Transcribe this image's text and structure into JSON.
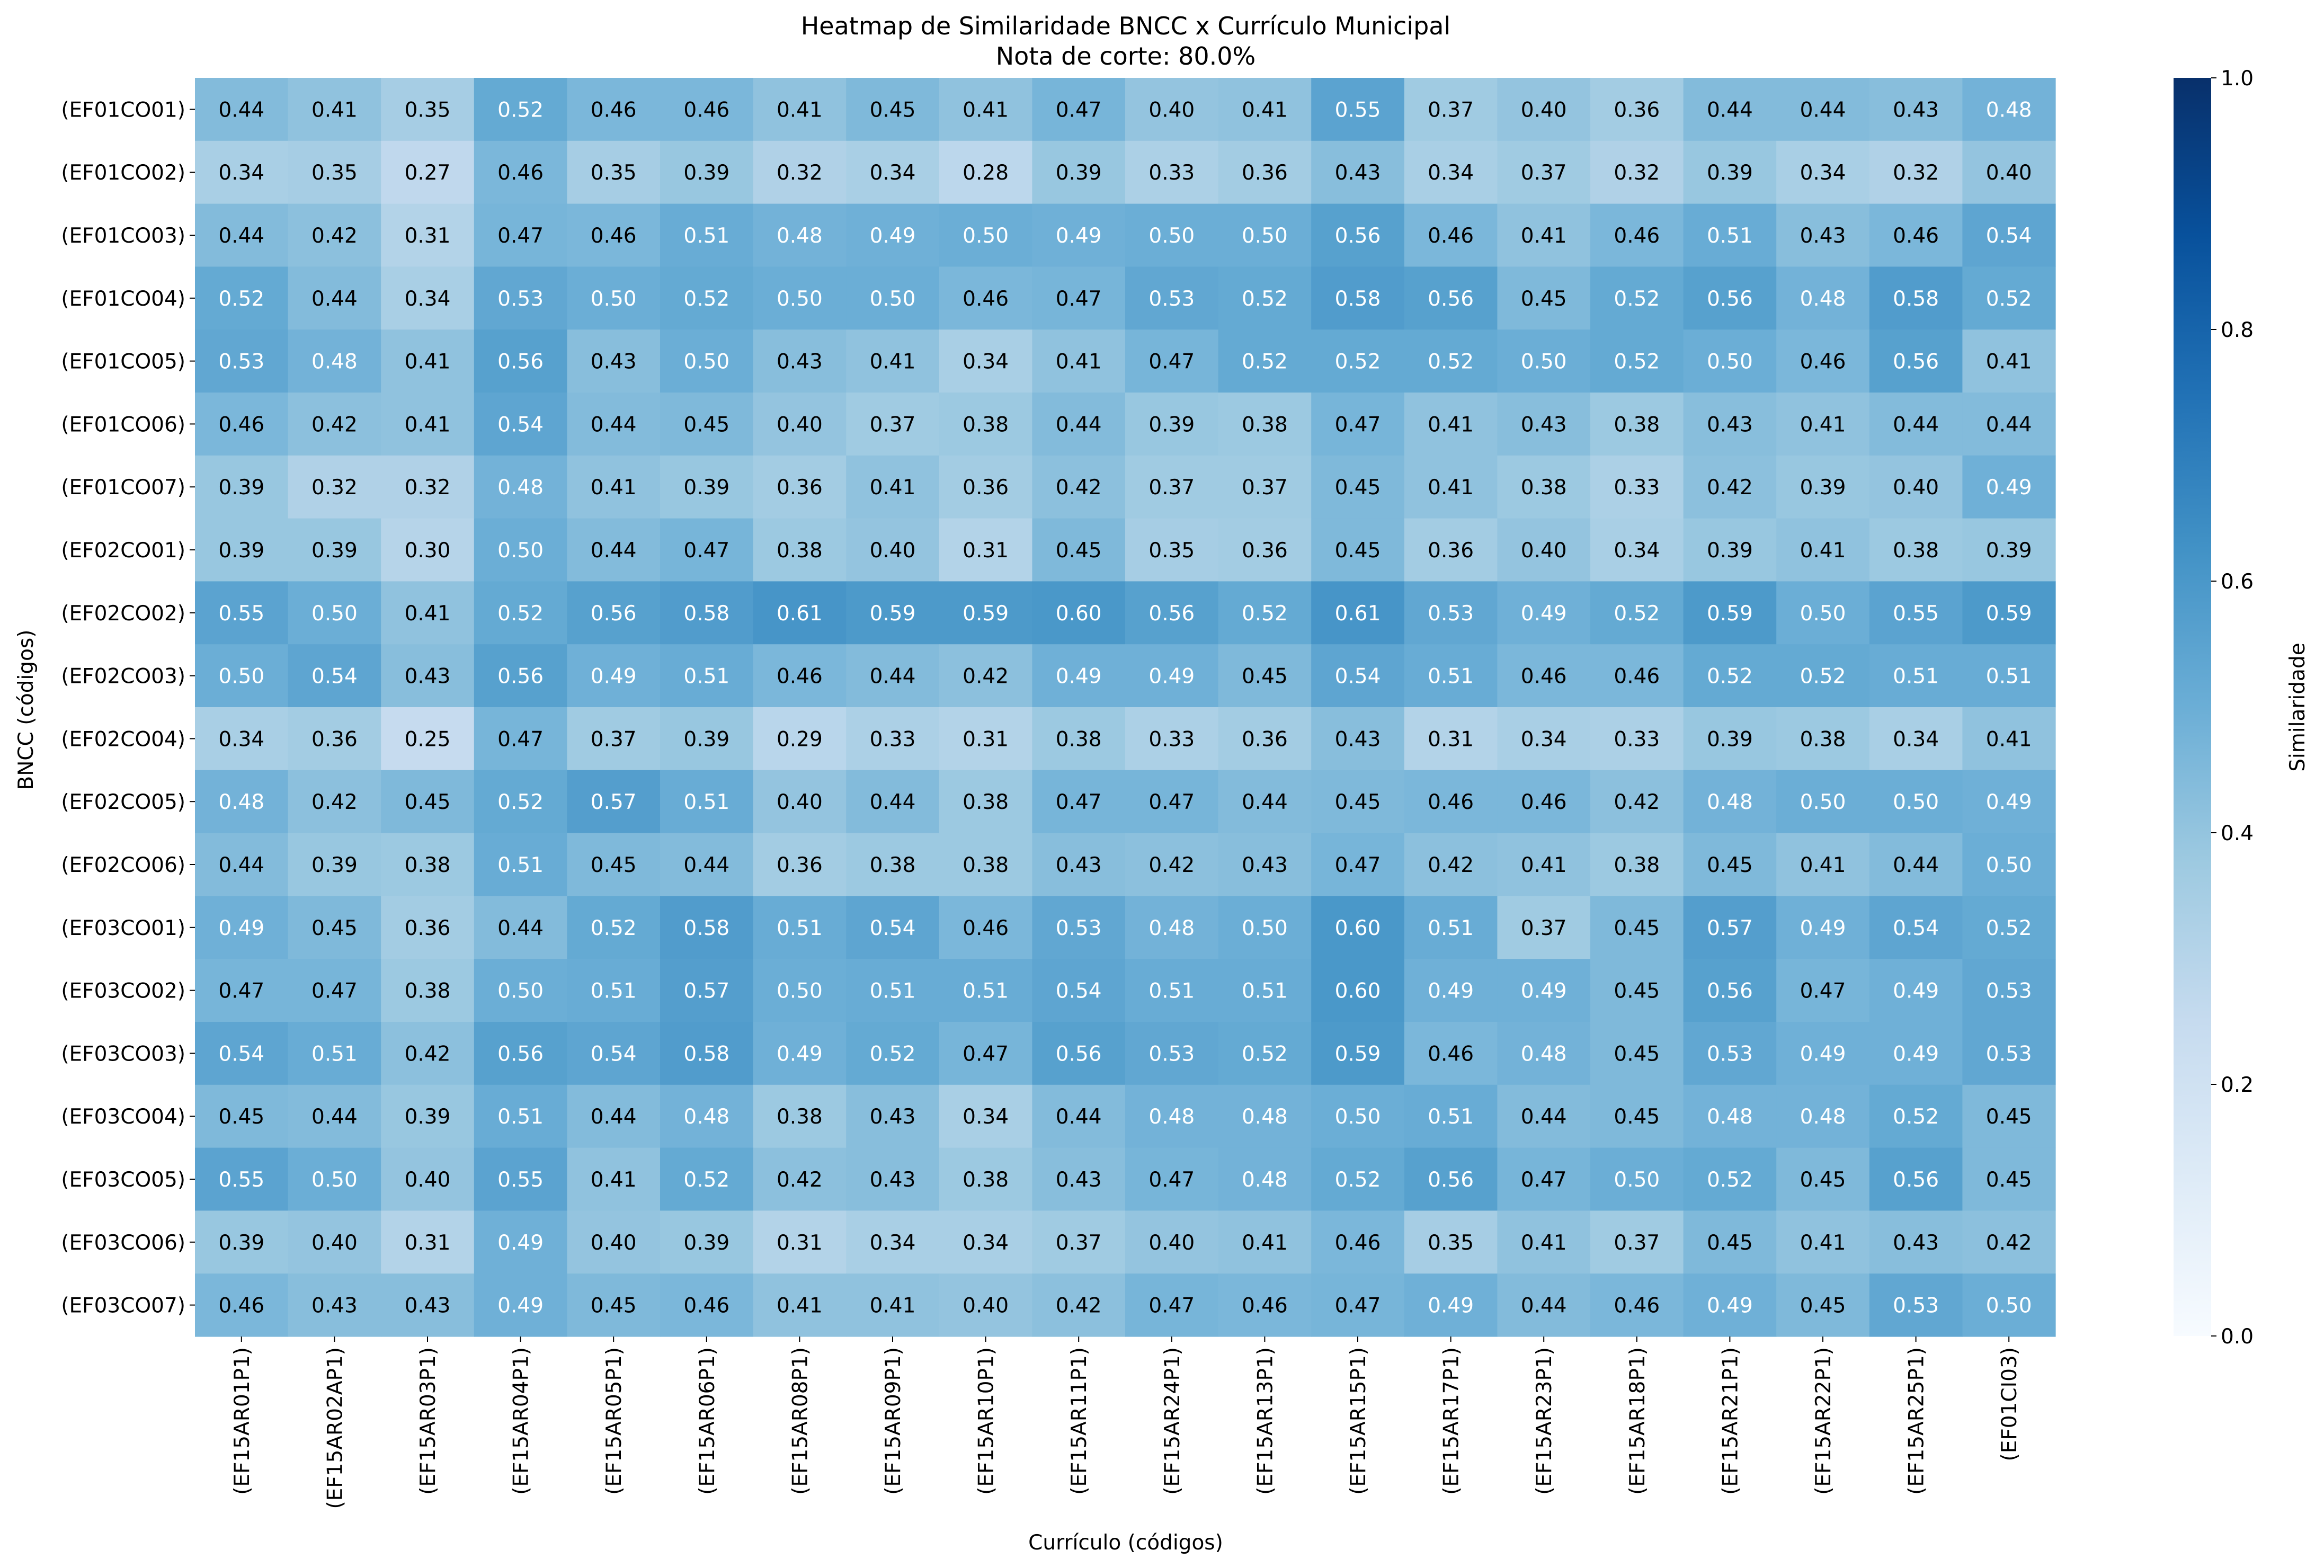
{
  "chart_data": {
    "type": "heatmap",
    "title": "Heatmap de Similaridade BNCC x Currículo Municipal",
    "subtitle": "Nota de corte: 80.0%",
    "xlabel": "Currículo (códigos)",
    "ylabel": "BNCC (códigos)",
    "colorbar_label": "Similaridade",
    "colorbar_ticks": [
      "0.0",
      "0.2",
      "0.4",
      "0.6",
      "0.8",
      "1.0"
    ],
    "vmin": 0.0,
    "vmax": 1.0,
    "colormap": "Blues",
    "x_categories": [
      "(EF15AR01P1)",
      "(EF15AR02AP1)",
      "(EF15AR03P1)",
      "(EF15AR04P1)",
      "(EF15AR05P1)",
      "(EF15AR06P1)",
      "(EF15AR08P1)",
      "(EF15AR09P1)",
      "(EF15AR10P1)",
      "(EF15AR11P1)",
      "(EF15AR24P1)",
      "(EF15AR13P1)",
      "(EF15AR15P1)",
      "(EF15AR17P1)",
      "(EF15AR23P1)",
      "(EF15AR18P1)",
      "(EF15AR21P1)",
      "(EF15AR22P1)",
      "(EF15AR25P1)",
      "(EF01CI03)"
    ],
    "y_categories": [
      "(EF01CO01)",
      "(EF01CO02)",
      "(EF01CO03)",
      "(EF01CO04)",
      "(EF01CO05)",
      "(EF01CO06)",
      "(EF01CO07)",
      "(EF02CO01)",
      "(EF02CO02)",
      "(EF02CO03)",
      "(EF02CO04)",
      "(EF02CO05)",
      "(EF02CO06)",
      "(EF03CO01)",
      "(EF03CO02)",
      "(EF03CO03)",
      "(EF03CO04)",
      "(EF03CO05)",
      "(EF03CO06)",
      "(EF03CO07)"
    ],
    "values": [
      [
        0.44,
        0.41,
        0.35,
        0.52,
        0.46,
        0.46,
        0.41,
        0.45,
        0.41,
        0.47,
        0.4,
        0.41,
        0.55,
        0.37,
        0.4,
        0.36,
        0.44,
        0.44,
        0.43,
        0.48
      ],
      [
        0.34,
        0.35,
        0.27,
        0.46,
        0.35,
        0.39,
        0.32,
        0.34,
        0.28,
        0.39,
        0.33,
        0.36,
        0.43,
        0.34,
        0.37,
        0.32,
        0.39,
        0.34,
        0.32,
        0.4
      ],
      [
        0.44,
        0.42,
        0.31,
        0.47,
        0.46,
        0.51,
        0.48,
        0.49,
        0.5,
        0.49,
        0.5,
        0.5,
        0.56,
        0.46,
        0.41,
        0.46,
        0.51,
        0.43,
        0.46,
        0.54
      ],
      [
        0.52,
        0.44,
        0.34,
        0.53,
        0.5,
        0.52,
        0.5,
        0.5,
        0.46,
        0.47,
        0.53,
        0.52,
        0.58,
        0.56,
        0.45,
        0.52,
        0.56,
        0.48,
        0.58,
        0.52
      ],
      [
        0.53,
        0.48,
        0.41,
        0.56,
        0.43,
        0.5,
        0.43,
        0.41,
        0.34,
        0.41,
        0.47,
        0.52,
        0.52,
        0.52,
        0.5,
        0.52,
        0.5,
        0.46,
        0.56,
        0.41
      ],
      [
        0.46,
        0.42,
        0.41,
        0.54,
        0.44,
        0.45,
        0.4,
        0.37,
        0.38,
        0.44,
        0.39,
        0.38,
        0.47,
        0.41,
        0.43,
        0.38,
        0.43,
        0.41,
        0.44,
        0.44
      ],
      [
        0.39,
        0.32,
        0.32,
        0.48,
        0.41,
        0.39,
        0.36,
        0.41,
        0.36,
        0.42,
        0.37,
        0.37,
        0.45,
        0.41,
        0.38,
        0.33,
        0.42,
        0.39,
        0.4,
        0.49
      ],
      [
        0.39,
        0.39,
        0.3,
        0.5,
        0.44,
        0.47,
        0.38,
        0.4,
        0.31,
        0.45,
        0.35,
        0.36,
        0.45,
        0.36,
        0.4,
        0.34,
        0.39,
        0.41,
        0.38,
        0.39
      ],
      [
        0.55,
        0.5,
        0.41,
        0.52,
        0.56,
        0.58,
        0.61,
        0.59,
        0.59,
        0.6,
        0.56,
        0.52,
        0.61,
        0.53,
        0.49,
        0.52,
        0.59,
        0.5,
        0.55,
        0.59
      ],
      [
        0.5,
        0.54,
        0.43,
        0.56,
        0.49,
        0.51,
        0.46,
        0.44,
        0.42,
        0.49,
        0.49,
        0.45,
        0.54,
        0.51,
        0.46,
        0.46,
        0.52,
        0.52,
        0.51,
        0.51
      ],
      [
        0.34,
        0.36,
        0.25,
        0.47,
        0.37,
        0.39,
        0.29,
        0.33,
        0.31,
        0.38,
        0.33,
        0.36,
        0.43,
        0.31,
        0.34,
        0.33,
        0.39,
        0.38,
        0.34,
        0.41
      ],
      [
        0.48,
        0.42,
        0.45,
        0.52,
        0.57,
        0.51,
        0.4,
        0.44,
        0.38,
        0.47,
        0.47,
        0.44,
        0.45,
        0.46,
        0.46,
        0.42,
        0.48,
        0.5,
        0.5,
        0.49
      ],
      [
        0.44,
        0.39,
        0.38,
        0.51,
        0.45,
        0.44,
        0.36,
        0.38,
        0.38,
        0.43,
        0.42,
        0.43,
        0.47,
        0.42,
        0.41,
        0.38,
        0.45,
        0.41,
        0.44,
        0.5
      ],
      [
        0.49,
        0.45,
        0.36,
        0.44,
        0.52,
        0.58,
        0.51,
        0.54,
        0.46,
        0.53,
        0.48,
        0.5,
        0.6,
        0.51,
        0.37,
        0.45,
        0.57,
        0.49,
        0.54,
        0.52
      ],
      [
        0.47,
        0.47,
        0.38,
        0.5,
        0.51,
        0.57,
        0.5,
        0.51,
        0.51,
        0.54,
        0.51,
        0.51,
        0.6,
        0.49,
        0.49,
        0.45,
        0.56,
        0.47,
        0.49,
        0.53
      ],
      [
        0.54,
        0.51,
        0.42,
        0.56,
        0.54,
        0.58,
        0.49,
        0.52,
        0.47,
        0.56,
        0.53,
        0.52,
        0.59,
        0.46,
        0.48,
        0.45,
        0.53,
        0.49,
        0.49,
        0.53
      ],
      [
        0.45,
        0.44,
        0.39,
        0.51,
        0.44,
        0.48,
        0.38,
        0.43,
        0.34,
        0.44,
        0.48,
        0.48,
        0.5,
        0.51,
        0.44,
        0.45,
        0.48,
        0.48,
        0.52,
        0.45
      ],
      [
        0.55,
        0.5,
        0.4,
        0.55,
        0.41,
        0.52,
        0.42,
        0.43,
        0.38,
        0.43,
        0.47,
        0.48,
        0.52,
        0.56,
        0.47,
        0.5,
        0.52,
        0.45,
        0.56,
        0.45
      ],
      [
        0.39,
        0.4,
        0.31,
        0.49,
        0.4,
        0.39,
        0.31,
        0.34,
        0.34,
        0.37,
        0.4,
        0.41,
        0.46,
        0.35,
        0.41,
        0.37,
        0.45,
        0.41,
        0.43,
        0.42
      ],
      [
        0.46,
        0.43,
        0.43,
        0.49,
        0.45,
        0.46,
        0.41,
        0.41,
        0.4,
        0.42,
        0.47,
        0.46,
        0.47,
        0.49,
        0.44,
        0.46,
        0.49,
        0.45,
        0.53,
        0.5
      ]
    ]
  }
}
